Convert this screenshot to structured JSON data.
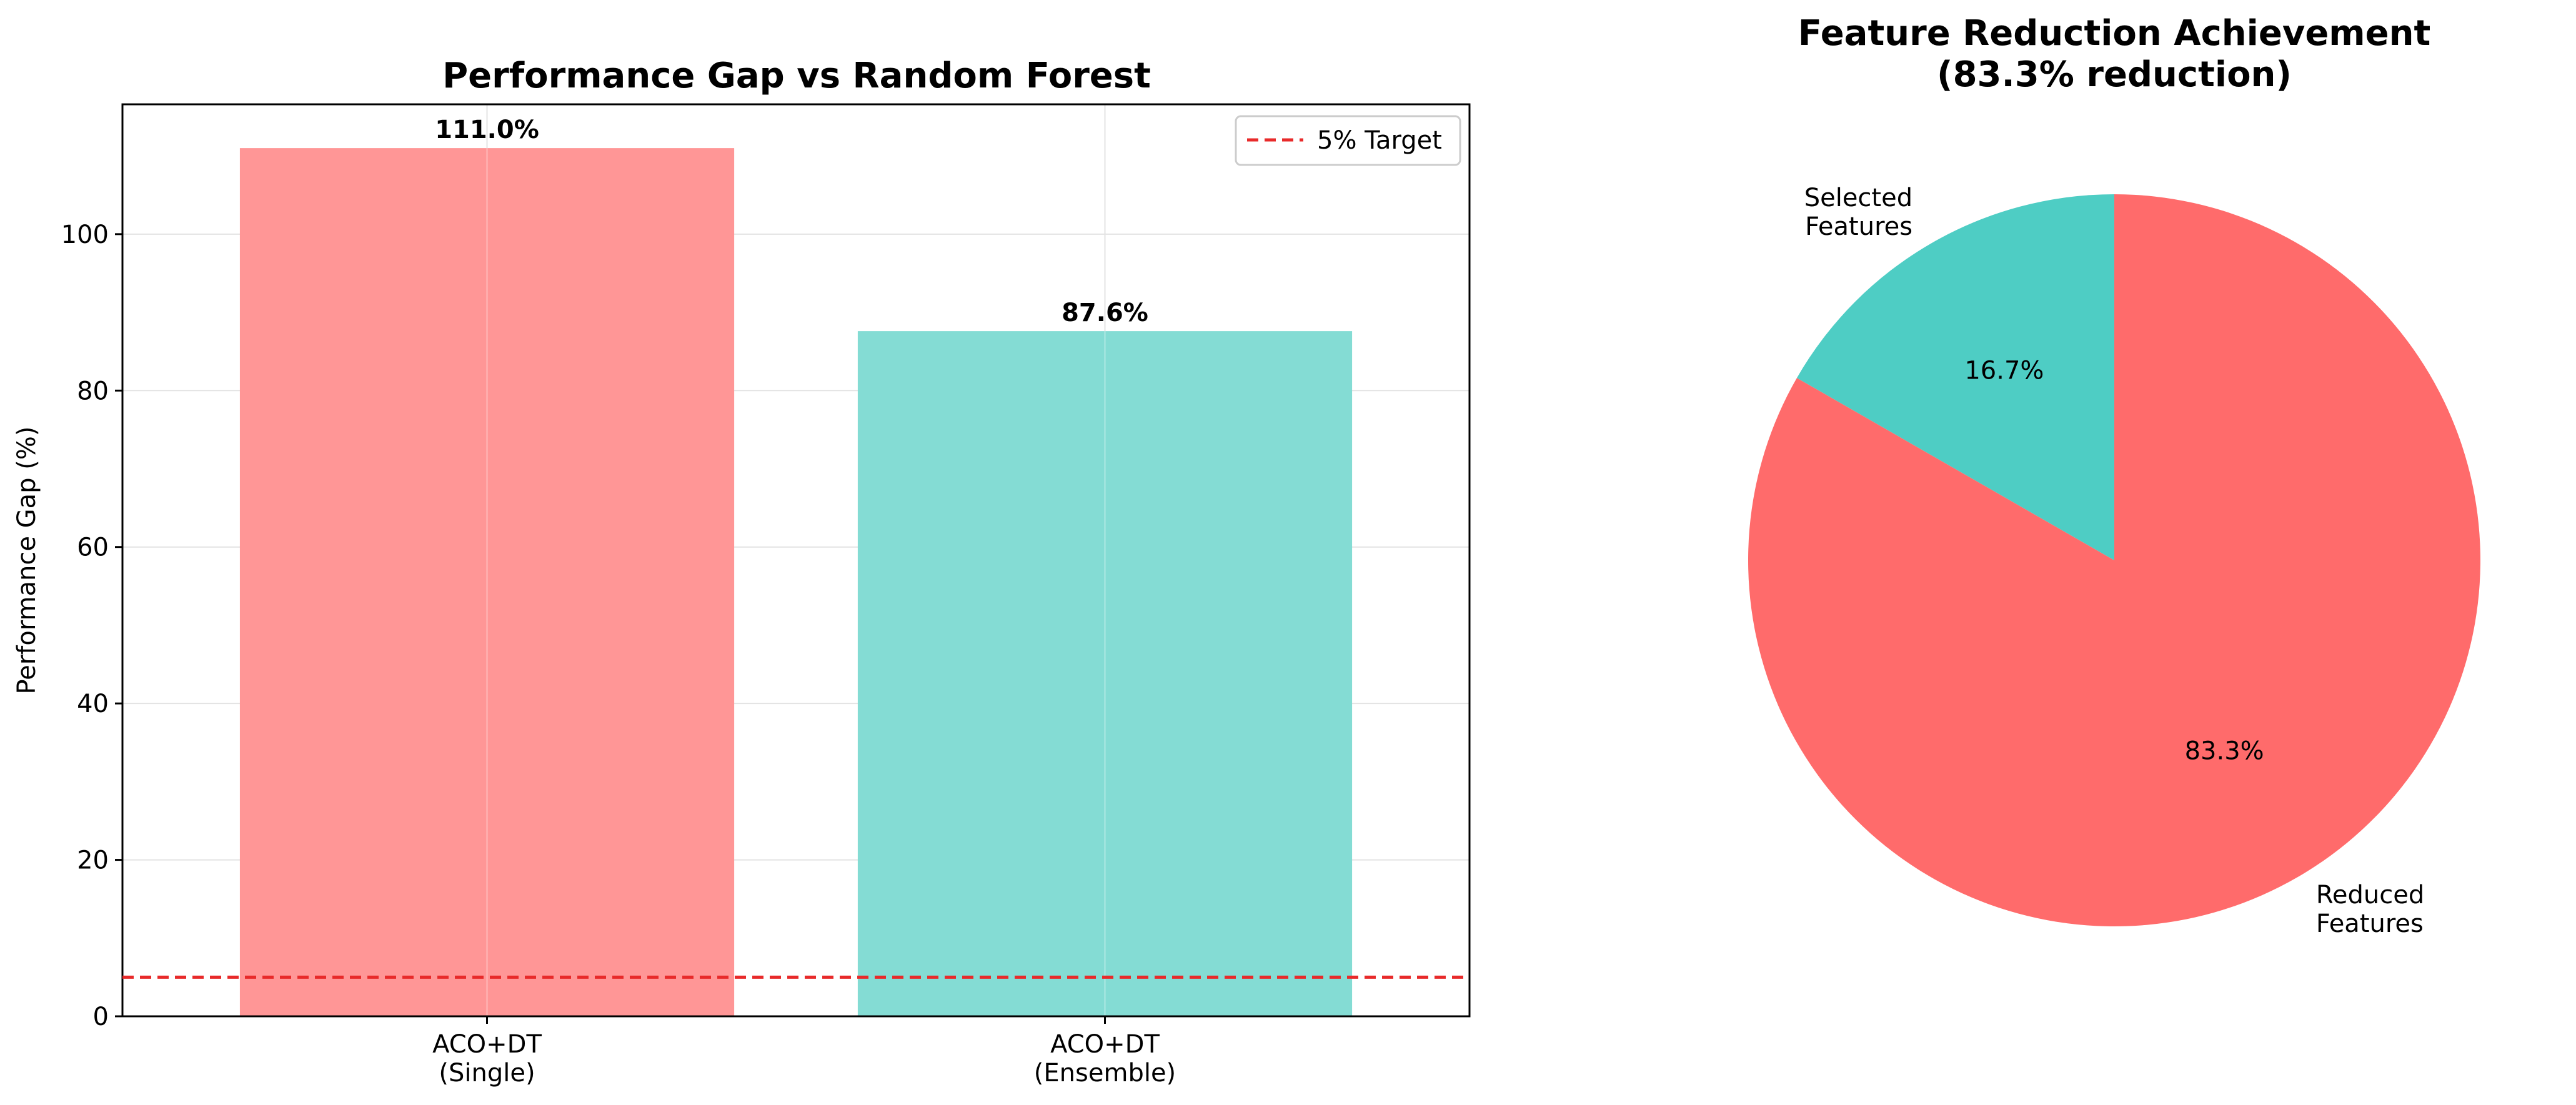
{
  "chart_data": [
    {
      "type": "bar",
      "title": "Performance Gap vs Random Forest",
      "xlabel": "",
      "ylabel": "Performance Gap (%)",
      "categories": [
        "ACO+DT\n(Single)",
        "ACO+DT\n(Ensemble)"
      ],
      "values": [
        111.0,
        87.6
      ],
      "value_labels": [
        "111.0%",
        "87.6%"
      ],
      "colors": [
        "#FF9696",
        "#84DCD4"
      ],
      "ylim": [
        0,
        116.6
      ],
      "yticks": [
        0,
        20,
        40,
        60,
        80,
        100
      ],
      "grid": true,
      "reference_line": {
        "name": "5% Target",
        "y": 5,
        "color": "#E82A2A",
        "style": "dashed"
      },
      "legend": {
        "position": "top-right",
        "entries": [
          "5% Target"
        ]
      }
    },
    {
      "type": "pie",
      "title": "Feature Reduction Achievement\n(83.3% reduction)",
      "slices": [
        {
          "label": "Selected\nFeatures",
          "value": 16.7,
          "pct_label": "16.7%",
          "color": "#4ECDC4"
        },
        {
          "label": "Reduced\nFeatures",
          "value": 83.3,
          "pct_label": "83.3%",
          "color": "#FF6B6B"
        }
      ],
      "start_angle": 90
    }
  ]
}
